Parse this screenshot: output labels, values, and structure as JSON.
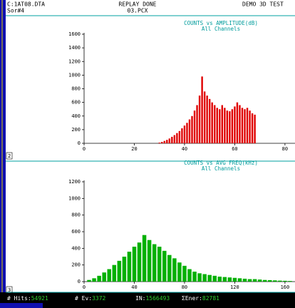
{
  "header": {
    "file": "C:1AT08.DTA",
    "source": "Sor#4",
    "status": "REPLAY DONE",
    "image": "03.PCX",
    "mode": "DEMO 3D TEST"
  },
  "panels": [
    "2",
    "3"
  ],
  "status_bar": [
    {
      "label": "# Hits:",
      "value": 54921
    },
    {
      "label": "# Ev:",
      "value": 3372
    },
    {
      "label": "IN:",
      "value": 1566493
    },
    {
      "label": "ΣEner:",
      "value": 82781
    }
  ],
  "chart_data": [
    {
      "type": "bar",
      "title": "COUNTS vs AMPLITUDE(dB)",
      "subtitle": "All Channels",
      "color": "#e00000",
      "x": [
        30,
        31,
        32,
        33,
        34,
        35,
        36,
        37,
        38,
        39,
        40,
        41,
        42,
        43,
        44,
        45,
        46,
        47,
        48,
        49,
        50,
        51,
        52,
        53,
        54,
        55,
        56,
        57,
        58,
        59,
        60,
        61,
        62,
        63,
        64,
        65,
        66,
        67,
        68
      ],
      "values": [
        10,
        20,
        35,
        50,
        70,
        95,
        120,
        150,
        180,
        220,
        260,
        300,
        350,
        400,
        480,
        560,
        700,
        980,
        760,
        700,
        650,
        600,
        560,
        520,
        500,
        560,
        520,
        480,
        470,
        500,
        540,
        600,
        560,
        520,
        500,
        520,
        480,
        440,
        420
      ],
      "xlim": [
        0,
        84
      ],
      "xticks": [
        0,
        20,
        40,
        60,
        80
      ],
      "ylim": [
        0,
        1600
      ],
      "yticks": [
        0,
        200,
        400,
        600,
        800,
        1000,
        1200,
        1400,
        1600
      ]
    },
    {
      "type": "bar",
      "title": "COUNTS vs AVG FREQ(kHz)",
      "subtitle": "All Channels",
      "color": "#00b000",
      "x": [
        4,
        8,
        12,
        16,
        20,
        24,
        28,
        32,
        36,
        40,
        44,
        48,
        52,
        56,
        60,
        64,
        68,
        72,
        76,
        80,
        84,
        88,
        92,
        96,
        100,
        104,
        108,
        112,
        116,
        120,
        124,
        128,
        132,
        136,
        140,
        144,
        148,
        152,
        156,
        160,
        164
      ],
      "values": [
        20,
        40,
        70,
        110,
        150,
        200,
        250,
        300,
        360,
        420,
        470,
        560,
        500,
        450,
        420,
        370,
        320,
        280,
        230,
        190,
        150,
        120,
        100,
        90,
        80,
        70,
        60,
        55,
        50,
        45,
        40,
        35,
        30,
        30,
        25,
        20,
        18,
        15,
        12,
        10,
        8
      ],
      "xlim": [
        0,
        168
      ],
      "xticks": [
        0,
        40,
        80,
        120,
        160
      ],
      "ylim": [
        0,
        1200
      ],
      "yticks": [
        0,
        200,
        400,
        600,
        800,
        1000,
        1200
      ]
    }
  ]
}
